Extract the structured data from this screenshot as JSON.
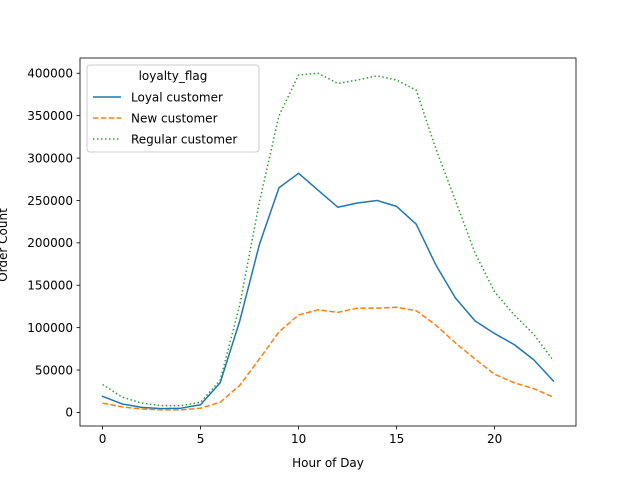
{
  "chart_data": {
    "type": "line",
    "title": "",
    "xlabel": "Hour of Day",
    "ylabel": "Order Count",
    "xlim": [
      -1.15,
      24.15
    ],
    "ylim": [
      -16000,
      418000
    ],
    "xticks": [
      0,
      5,
      10,
      15,
      20
    ],
    "yticks": [
      0,
      50000,
      100000,
      150000,
      200000,
      250000,
      300000,
      350000,
      400000
    ],
    "grid": false,
    "legend": {
      "title": "loyalty_flag",
      "placement": "top-left"
    },
    "x": [
      0,
      1,
      2,
      3,
      4,
      5,
      6,
      7,
      8,
      9,
      10,
      11,
      12,
      13,
      14,
      15,
      16,
      17,
      18,
      19,
      20,
      21,
      22,
      23
    ],
    "series": [
      {
        "name": "Loyal customer",
        "color": "#1f77b4",
        "style": "solid",
        "values": [
          19000,
          10000,
          6000,
          4500,
          5000,
          9000,
          35000,
          108000,
          198000,
          265000,
          282000,
          262000,
          242000,
          247000,
          250000,
          243000,
          222000,
          174000,
          135000,
          108000,
          93000,
          80000,
          62000,
          37000
        ]
      },
      {
        "name": "New customer",
        "color": "#ff7f0e",
        "style": "dashed",
        "values": [
          11000,
          6500,
          4000,
          3000,
          3000,
          5000,
          12000,
          32000,
          63000,
          95000,
          115000,
          121000,
          118000,
          123000,
          123000,
          124000,
          120000,
          103000,
          82000,
          63000,
          45000,
          35000,
          28000,
          18000
        ]
      },
      {
        "name": "Regular customer",
        "color": "#2ca02c",
        "style": "dotted",
        "values": [
          33000,
          18000,
          11000,
          8000,
          8000,
          12000,
          38000,
          127000,
          248000,
          350000,
          398000,
          400000,
          388000,
          392000,
          397000,
          392000,
          380000,
          311000,
          250000,
          188000,
          142000,
          115000,
          92000,
          61000
        ]
      }
    ]
  }
}
